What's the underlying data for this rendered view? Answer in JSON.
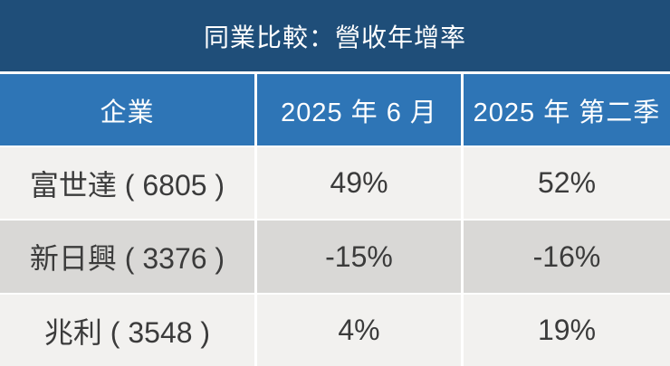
{
  "title": "同業比較：營收年增率",
  "table": {
    "columns": [
      "企業",
      "2025 年 6 月",
      "2025 年 第二季"
    ],
    "rows": [
      {
        "company": "富世達 ( 6805 )",
        "values": [
          "49%",
          "52%"
        ]
      },
      {
        "company": "新日興 ( 3376 )",
        "values": [
          "-15%",
          "-16%"
        ]
      },
      {
        "company": "兆利 ( 3548 )",
        "values": [
          "4%",
          "19%"
        ]
      }
    ]
  },
  "chart_data": {
    "type": "table",
    "title": "同業比較：營收年增率",
    "columns": [
      "企業",
      "2025 年 6 月",
      "2025 年 第二季"
    ],
    "categories": [
      "富世達 (6805)",
      "新日興 (3376)",
      "兆利 (3548)"
    ],
    "series": [
      {
        "name": "2025 年 6 月",
        "values": [
          49,
          -15,
          4
        ]
      },
      {
        "name": "2025 年 第二季",
        "values": [
          52,
          -16,
          19
        ]
      }
    ],
    "rows": [
      [
        "富世達 ( 6805 )",
        "49%",
        "52%"
      ],
      [
        "新日興 ( 3376 )",
        "-15%",
        "-16%"
      ],
      [
        "兆利 ( 3548 )",
        "4%",
        "19%"
      ]
    ]
  },
  "colors": {
    "title_bg": "#1f4e79",
    "header_bg": "#2e75b6",
    "row_light": "#f2f1ef",
    "row_dark": "#d9d8d6",
    "text_dark": "#3b3b3b",
    "text_light": "#ffffff"
  }
}
